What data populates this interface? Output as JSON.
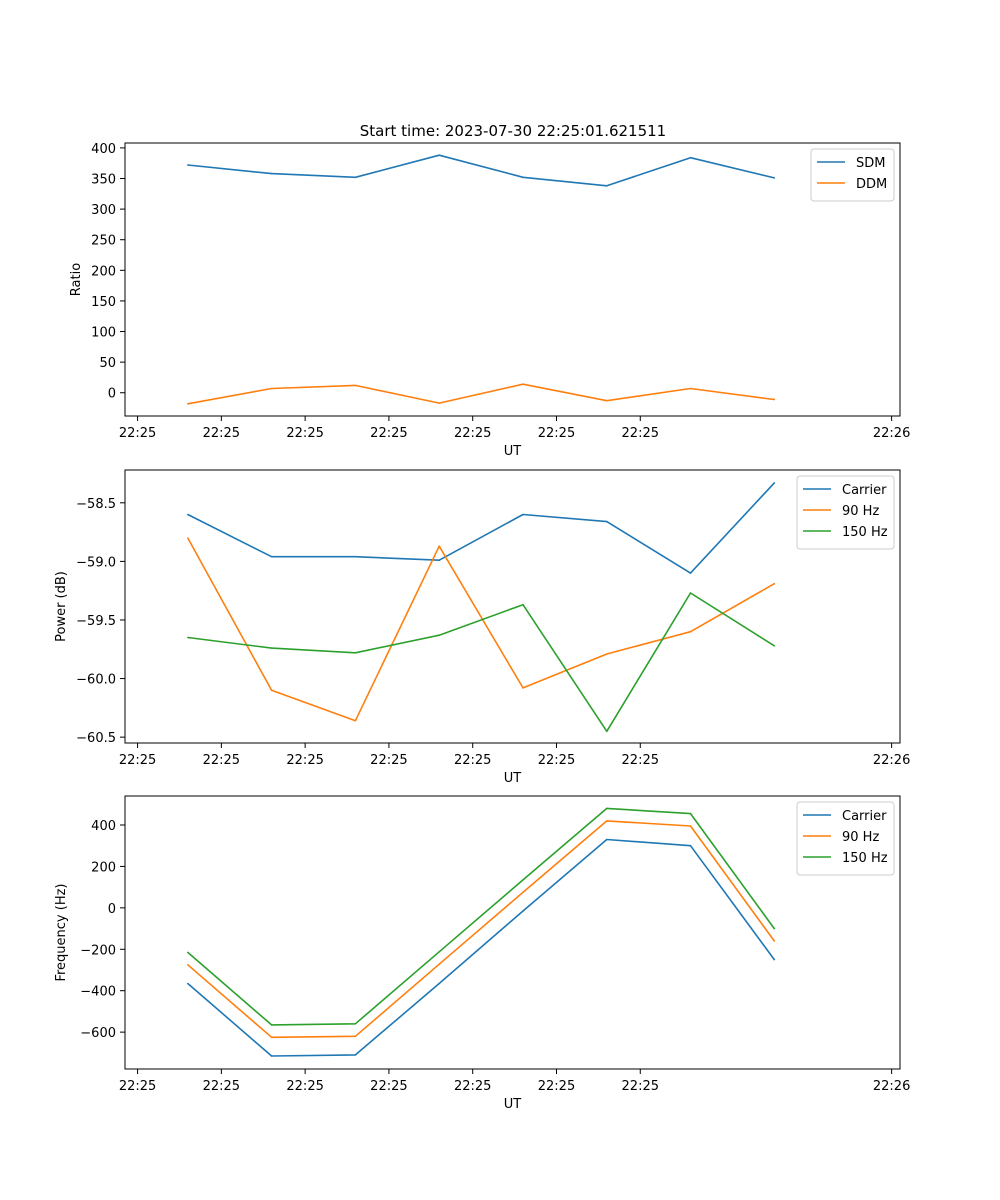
{
  "figure_title": "Start time: 2023-07-30 22:25:01.621511",
  "colors": {
    "blue": "#1f77b4",
    "orange": "#ff7f0e",
    "green": "#2ca02c"
  },
  "chart_data": [
    {
      "type": "line",
      "title": "Start time: 2023-07-30 22:25:01.621511",
      "xlabel": "UT",
      "ylabel": "Ratio",
      "x_ticks": [
        "22:25",
        "22:25",
        "22:25",
        "22:25",
        "22:25",
        "22:25",
        "22:25"
      ],
      "x_tick_last": "22:26",
      "xlim": [
        -0.15,
        9.1
      ],
      "ylim": [
        -38,
        408
      ],
      "y_ticks": [
        0,
        50,
        100,
        150,
        200,
        250,
        300,
        350,
        400
      ],
      "y_tick_labels": [
        "0",
        "50",
        "100",
        "150",
        "200",
        "250",
        "300",
        "350",
        "400"
      ],
      "x": [
        0.6,
        1.6,
        2.6,
        3.6,
        4.6,
        5.6,
        6.6,
        7.6
      ],
      "legend_position": "top-right",
      "series": [
        {
          "name": "SDM",
          "color": "#1f77b4",
          "values": [
            372,
            358,
            352,
            388,
            352,
            338,
            384,
            351
          ]
        },
        {
          "name": "DDM",
          "color": "#ff7f0e",
          "values": [
            -18,
            7,
            12,
            -17,
            14,
            -13,
            7,
            -11
          ]
        }
      ]
    },
    {
      "type": "line",
      "title": "",
      "xlabel": "UT",
      "ylabel": "Power (dB)",
      "x_ticks": [
        "22:25",
        "22:25",
        "22:25",
        "22:25",
        "22:25",
        "22:25",
        "22:25"
      ],
      "x_tick_last": "22:26",
      "xlim": [
        -0.15,
        9.1
      ],
      "ylim": [
        -60.55,
        -58.22
      ],
      "y_ticks": [
        -58.5,
        -59.0,
        -59.5,
        -60.0,
        -60.5
      ],
      "y_tick_labels": [
        "−58.5",
        "−59.0",
        "−59.5",
        "−60.0",
        "−60.5"
      ],
      "x": [
        0.6,
        1.6,
        2.6,
        3.6,
        4.6,
        5.6,
        6.6,
        7.6
      ],
      "legend_position": "top-right",
      "series": [
        {
          "name": "Carrier",
          "color": "#1f77b4",
          "values": [
            -58.6,
            -58.96,
            -58.96,
            -58.99,
            -58.6,
            -58.66,
            -59.1,
            -58.33
          ]
        },
        {
          "name": "90 Hz",
          "color": "#ff7f0e",
          "values": [
            -58.8,
            -60.1,
            -60.36,
            -58.87,
            -60.08,
            -59.79,
            -59.6,
            -59.19
          ]
        },
        {
          "name": "150 Hz",
          "color": "#2ca02c",
          "values": [
            -59.65,
            -59.74,
            -59.78,
            -59.63,
            -59.37,
            -60.45,
            -59.27,
            -59.72
          ]
        }
      ]
    },
    {
      "type": "line",
      "title": "",
      "xlabel": "UT",
      "ylabel": "Frequency (Hz)",
      "x_ticks": [
        "22:25",
        "22:25",
        "22:25",
        "22:25",
        "22:25",
        "22:25",
        "22:25"
      ],
      "x_tick_last": "22:26",
      "xlim": [
        -0.15,
        9.1
      ],
      "ylim": [
        -778,
        540
      ],
      "y_ticks": [
        400,
        200,
        0,
        -200,
        -400,
        -600
      ],
      "y_tick_labels": [
        "400",
        "200",
        "0",
        "−200",
        "−400",
        "−600"
      ],
      "x": [
        0.6,
        1.6,
        2.6,
        3.6,
        4.6,
        5.6,
        6.6,
        7.6
      ],
      "legend_position": "top-right",
      "series": [
        {
          "name": "Carrier",
          "color": "#1f77b4",
          "values": [
            -365,
            -715,
            -710,
            -365,
            -15,
            330,
            300,
            -250
          ]
        },
        {
          "name": "90 Hz",
          "color": "#ff7f0e",
          "values": [
            -275,
            -625,
            -620,
            -272,
            75,
            420,
            395,
            -160
          ]
        },
        {
          "name": "150 Hz",
          "color": "#2ca02c",
          "values": [
            -215,
            -565,
            -560,
            -212,
            135,
            480,
            455,
            -100
          ]
        }
      ]
    }
  ]
}
